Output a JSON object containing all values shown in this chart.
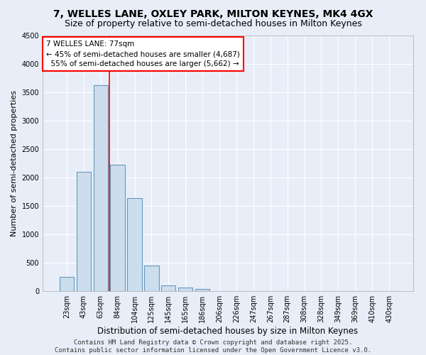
{
  "title1": "7, WELLES LANE, OXLEY PARK, MILTON KEYNES, MK4 4GX",
  "title2": "Size of property relative to semi-detached houses in Milton Keynes",
  "xlabel": "Distribution of semi-detached houses by size in Milton Keynes",
  "ylabel": "Number of semi-detached properties",
  "footer": "Contains HM Land Registry data © Crown copyright and database right 2025.\nContains public sector information licensed under the Open Government Licence v3.0.",
  "categories": [
    "23sqm",
    "43sqm",
    "63sqm",
    "84sqm",
    "104sqm",
    "125sqm",
    "145sqm",
    "165sqm",
    "186sqm",
    "206sqm",
    "226sqm",
    "247sqm",
    "267sqm",
    "287sqm",
    "308sqm",
    "328sqm",
    "349sqm",
    "369sqm",
    "410sqm",
    "430sqm"
  ],
  "values": [
    250,
    2100,
    3630,
    2220,
    1640,
    450,
    100,
    60,
    40,
    0,
    0,
    0,
    0,
    0,
    0,
    0,
    0,
    0,
    0,
    0
  ],
  "bar_color": "#ccdded",
  "bar_edge_color": "#6699bb",
  "bar_linewidth": 0.8,
  "vline_color": "red",
  "vline_linewidth": 1.2,
  "vline_pos": 2.5,
  "annotation_text": "7 WELLES LANE: 77sqm\n← 45% of semi-detached houses are smaller (4,687)\n  55% of semi-detached houses are larger (5,662) →",
  "annotation_box_facecolor": "white",
  "annotation_box_edgecolor": "red",
  "ylim": [
    0,
    4500
  ],
  "yticks": [
    0,
    500,
    1000,
    1500,
    2000,
    2500,
    3000,
    3500,
    4000,
    4500
  ],
  "bg_color": "#e8eef8",
  "grid_color": "white",
  "title1_fontsize": 10,
  "title2_fontsize": 9,
  "xlabel_fontsize": 8.5,
  "ylabel_fontsize": 8,
  "tick_fontsize": 7,
  "annotation_fontsize": 7.5,
  "footer_fontsize": 6.5
}
